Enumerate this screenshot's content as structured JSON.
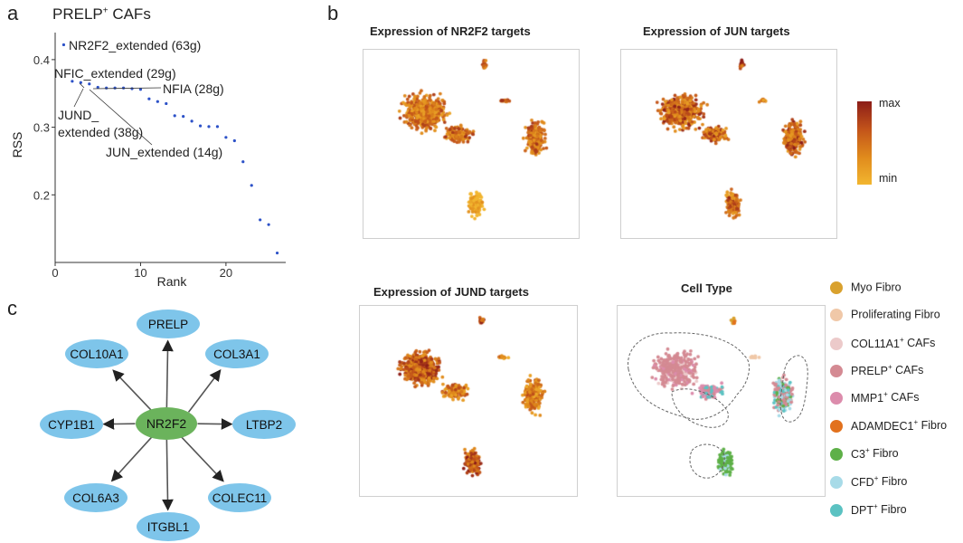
{
  "panels": {
    "a": "a",
    "b": "b",
    "c": "c"
  },
  "panel_a": {
    "title_main": "PRELP",
    "title_sup": "+",
    "title_tail": " CAFs"
  },
  "chart_data": [
    {
      "type": "scatter",
      "title": "PRELP+ CAFs",
      "xlabel": "Rank",
      "ylabel": "RSS",
      "xlim": [
        0,
        27
      ],
      "ylim": [
        0.1,
        0.44
      ],
      "xticks": [
        0,
        10,
        20
      ],
      "yticks": [
        0.2,
        0.3,
        0.4
      ],
      "x": [
        1,
        2,
        3,
        4,
        5,
        6,
        7,
        8,
        9,
        10,
        11,
        12,
        13,
        14,
        15,
        16,
        17,
        18,
        19,
        20,
        21,
        22,
        23,
        24,
        25,
        26
      ],
      "values": [
        0.422,
        0.368,
        0.366,
        0.364,
        0.359,
        0.358,
        0.358,
        0.358,
        0.357,
        0.356,
        0.342,
        0.338,
        0.335,
        0.317,
        0.316,
        0.309,
        0.302,
        0.301,
        0.301,
        0.285,
        0.28,
        0.249,
        0.214,
        0.163,
        0.156,
        0.114
      ],
      "color": "#2d52c8",
      "annotations": [
        {
          "label": "NR2F2_extended (63g)",
          "rank": 1
        },
        {
          "label": "NFIC_extended (29g)",
          "rank": 2
        },
        {
          "label": "NFIA (28g)",
          "rank": 4
        },
        {
          "label": "JUND_",
          "label2": "extended (38g)",
          "rank": 3
        },
        {
          "label": "JUN_extended (14g)",
          "rank": 5
        }
      ]
    },
    {
      "type": "scatter",
      "title": "Expression of NR2F2 targets",
      "colormap": "expression"
    },
    {
      "type": "scatter",
      "title": "Expression of JUN targets",
      "colormap": "expression"
    },
    {
      "type": "scatter",
      "title": "Expression of JUND targets",
      "colormap": "expression"
    },
    {
      "type": "scatter",
      "title": "Cell Type",
      "colormap": "cell type"
    }
  ],
  "umaps": {
    "nr2f2_title": "Expression of NR2F2 targets",
    "jun_title": "Expression of JUN targets",
    "jund_title": "Expression of JUND targets",
    "celltype_title": "Cell Type"
  },
  "colorbar": {
    "max_label": "max",
    "min_label": "min",
    "colors": [
      "#8c1d18",
      "#c2531a",
      "#e08a1c",
      "#f2b630"
    ]
  },
  "legend": [
    {
      "label": "Myo Fibro",
      "color": "#d9a12e"
    },
    {
      "label": "Proliferating Fibro",
      "color": "#f0c8a8"
    },
    {
      "label": "COL11A1",
      "sup": "+",
      "tail": " CAFs",
      "color": "#eccaca"
    },
    {
      "label": "PRELP",
      "sup": "+",
      "tail": " CAFs",
      "color": "#d48a93"
    },
    {
      "label": "MMP1",
      "sup": "+",
      "tail": " CAFs",
      "color": "#dc8cac"
    },
    {
      "label": "ADAMDEC1",
      "sup": "+",
      "tail": " Fibro",
      "color": "#e2711d"
    },
    {
      "label": "C3",
      "sup": "+",
      "tail": " Fibro",
      "color": "#5eb048"
    },
    {
      "label": "CFD",
      "sup": "+",
      "tail": " Fibro",
      "color": "#a8dbe8"
    },
    {
      "label": "DPT",
      "sup": "+",
      "tail": " Fibro",
      "color": "#5bc2c2"
    }
  ],
  "network": {
    "center": "NR2F2",
    "targets": [
      "PRELP",
      "COL3A1",
      "LTBP2",
      "COLEC11",
      "ITGBL1",
      "COL6A3",
      "CYP1B1",
      "COL10A1"
    ],
    "center_color": "#6bb35c",
    "node_color": "#7ec5ea"
  }
}
